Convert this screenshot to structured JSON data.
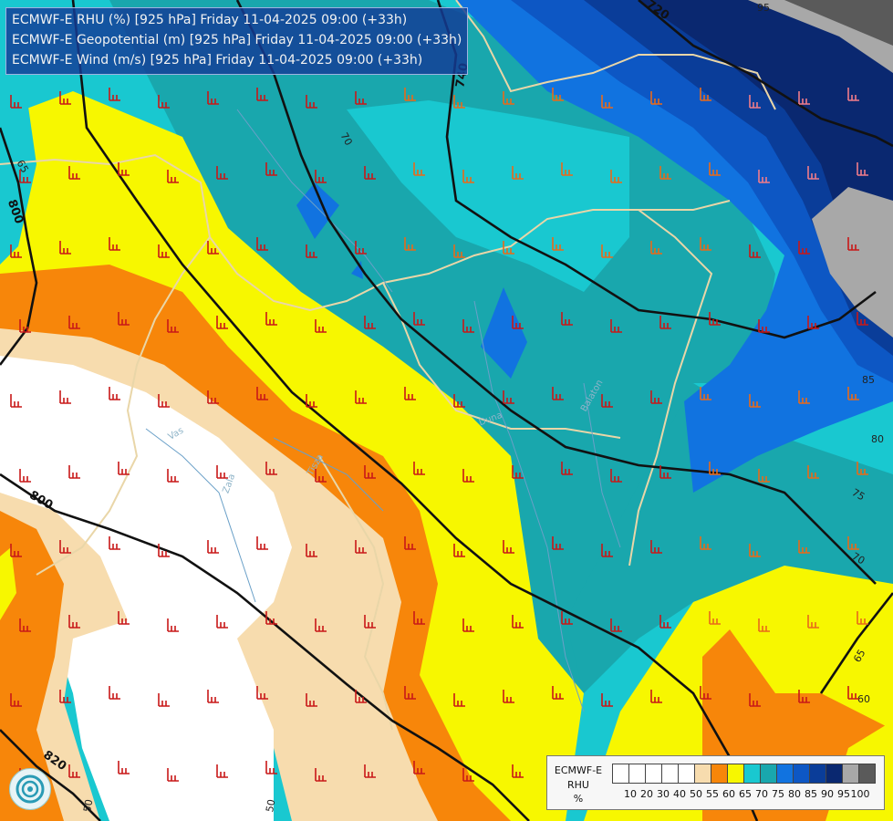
{
  "header": {
    "line1": "ECMWF-E RHU (%) [925 hPa] Friday 11-04-2025 09:00 (+33h)",
    "line2": "ECMWF-E Geopotential (m) [925 hPa] Friday 11-04-2025 09:00 (+33h)",
    "line3": "ECMWF-E Wind (m/s) [925 hPa] Friday 11-04-2025 09:00 (+33h)"
  },
  "legend": {
    "title": "ECMWF-E RHU",
    "unit": "%",
    "colors": [
      "#ffffff",
      "#ffffff",
      "#ffffff",
      "#ffffff",
      "#ffffff",
      "#f7dcae",
      "#f7860a",
      "#f7f700",
      "#19c8d0",
      "#19a7ad",
      "#1173e0",
      "#0d57c4",
      "#0a3d99",
      "#0a2870",
      "#a8a8a8",
      "#5a5a5a"
    ],
    "labels": [
      "10",
      "20",
      "30",
      "40",
      "50",
      "55",
      "60",
      "65",
      "70",
      "75",
      "80",
      "85",
      "90",
      "95",
      "100"
    ]
  },
  "contours": {
    "geopotential": [
      "720",
      "740",
      "800",
      "800",
      "820"
    ],
    "rhu": [
      "95",
      "80",
      "85",
      "70",
      "65",
      "75",
      "70",
      "65",
      "60",
      "50",
      "50"
    ]
  },
  "places": [
    "Vas",
    "Zala",
    "Tisza",
    "Duna",
    "Balaton"
  ],
  "wind_barb_color": "#c81818"
}
